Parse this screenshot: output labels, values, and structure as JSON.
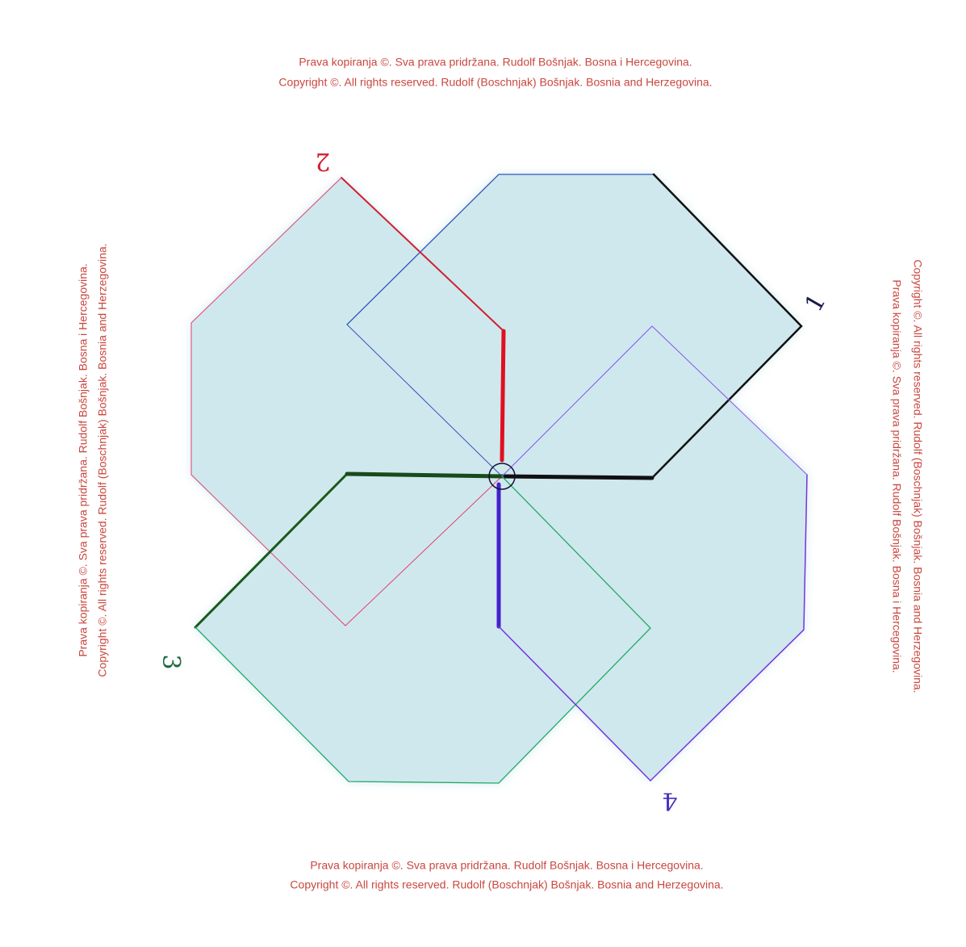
{
  "notices": [
    {
      "line1": "Prava kopiranja ©.  Sva prava pridržana.  Rudolf Bošnjak. Bosna i Hercegovina.",
      "line2": "Copyright ©.  All rights reserved.  Rudolf (Boschnjak) Bošnjak. Bosnia and Herzegovina."
    },
    {
      "line1": "Prava kopiranja ©.  Sva prava pridržana.  Rudolf Bošnjak. Bosna i Hercegovina.",
      "line2": "Copyright ©.  All rights reserved.  Rudolf (Boschnjak) Bošnjak. Bosnia and Herzegovina."
    },
    {
      "line1": "Prava kopiranja ©.  Sva prava pridržana.  Rudolf Bošnjak. Bosna i Hercegovina.",
      "line2": "Copyright ©.  All rights reserved.  Rudolf (Boschnjak) Bošnjak. Bosnia and Herzegovina."
    },
    {
      "line1": "Prava kopiranja ©.  Sva prava pridržana.  Rudolf Bošnjak. Bosna i Hercegovina.",
      "line2": "Copyright ©.  All rights reserved.  Rudolf (Boschnjak) Bošnjak. Bosnia and Herzegovina."
    }
  ],
  "labels": [
    "1",
    "2",
    "3",
    "4"
  ]
}
